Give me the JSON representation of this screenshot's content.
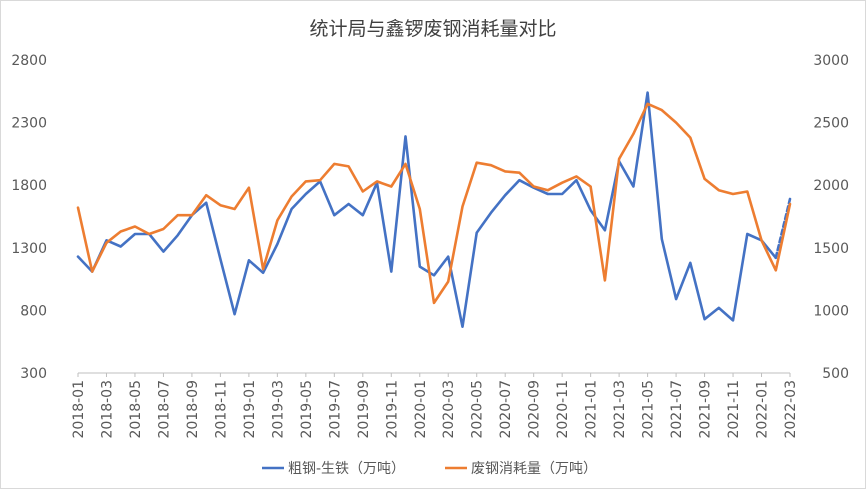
{
  "chart_data": {
    "type": "line",
    "title": "统计局与鑫锣废钢消耗量对比",
    "x": [
      "2018-01",
      "2018-02",
      "2018-03",
      "2018-04",
      "2018-05",
      "2018-06",
      "2018-07",
      "2018-08",
      "2018-09",
      "2018-10",
      "2018-11",
      "2018-12",
      "2019-01",
      "2019-02",
      "2019-03",
      "2019-04",
      "2019-05",
      "2019-06",
      "2019-07",
      "2019-08",
      "2019-09",
      "2019-10",
      "2019-11",
      "2019-12",
      "2020-01",
      "2020-02",
      "2020-03",
      "2020-04",
      "2020-05",
      "2020-06",
      "2020-07",
      "2020-08",
      "2020-09",
      "2020-10",
      "2020-11",
      "2020-12",
      "2021-01",
      "2021-02",
      "2021-03",
      "2021-04",
      "2021-05",
      "2021-06",
      "2021-07",
      "2021-08",
      "2021-09",
      "2021-10",
      "2021-11",
      "2021-12",
      "2022-01",
      "2022-02",
      "2022-03"
    ],
    "x_tick_labels": [
      "2018-01",
      "2018-03",
      "2018-05",
      "2018-07",
      "2018-09",
      "2018-11",
      "2019-01",
      "2019-03",
      "2019-05",
      "2019-07",
      "2019-09",
      "2019-11",
      "2020-01",
      "2020-03",
      "2020-05",
      "2020-07",
      "2020-09",
      "2020-11",
      "2021-01",
      "2021-03",
      "2021-05",
      "2021-07",
      "2021-09",
      "2021-11",
      "2022-01",
      "2022-03"
    ],
    "y_left": {
      "ylim": [
        300,
        2800
      ],
      "ticks": [
        300,
        800,
        1300,
        1800,
        2300,
        2800
      ]
    },
    "y_right": {
      "ylim": [
        500,
        3000
      ],
      "ticks": [
        500,
        1000,
        1500,
        2000,
        2500,
        3000
      ]
    },
    "series": [
      {
        "name": "粗钢-生铁（万吨）",
        "axis": "left",
        "color": "#4472C4",
        "dashed_last_segment": true,
        "values": [
          1230,
          1110,
          1360,
          1310,
          1410,
          1410,
          1270,
          1400,
          1560,
          1660,
          1210,
          770,
          1200,
          1100,
          1330,
          1610,
          1730,
          1830,
          1560,
          1650,
          1560,
          1820,
          1110,
          2190,
          1150,
          1080,
          1230,
          670,
          1420,
          1580,
          1720,
          1840,
          1780,
          1730,
          1730,
          1840,
          1600,
          1440,
          1990,
          1790,
          2540,
          1370,
          890,
          1180,
          730,
          820,
          720,
          1410,
          1360,
          1220,
          1690
        ]
      },
      {
        "name": "废钢消耗量（万吨）",
        "axis": "right",
        "color": "#ED7D31",
        "dashed_last_segment": false,
        "values": [
          1820,
          1310,
          1540,
          1630,
          1670,
          1610,
          1650,
          1760,
          1760,
          1920,
          1840,
          1810,
          1980,
          1330,
          1720,
          1910,
          2030,
          2040,
          2170,
          2150,
          1950,
          2030,
          1990,
          2170,
          1810,
          1060,
          1230,
          1830,
          2180,
          2160,
          2110,
          2100,
          1990,
          1960,
          2020,
          2070,
          1990,
          1240,
          2210,
          2410,
          2650,
          2600,
          2500,
          2380,
          2050,
          1960,
          1930,
          1950,
          1560,
          1320,
          1850
        ]
      }
    ],
    "legend": {
      "placement": "bottom-center"
    },
    "grid": false
  }
}
